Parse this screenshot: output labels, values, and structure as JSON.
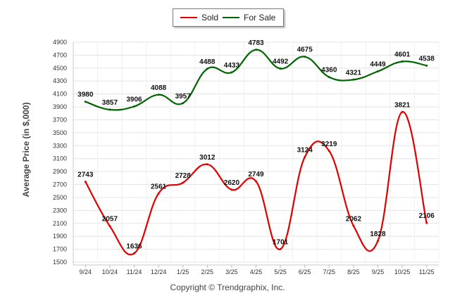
{
  "chart_data": {
    "type": "line",
    "title": "",
    "xlabel": "",
    "ylabel": "Average Price (in $,000)",
    "ylim": [
      1500,
      4900
    ],
    "ytick_step": 200,
    "categories": [
      "9/24",
      "10/24",
      "11/24",
      "12/24",
      "1/25",
      "2/25",
      "3/25",
      "4/25",
      "5/25",
      "6/25",
      "7/25",
      "8/25",
      "9/25",
      "10/25",
      "11/25"
    ],
    "series": [
      {
        "name": "Sold",
        "color": "#e00000",
        "values": [
          2743,
          2057,
          1636,
          2561,
          2728,
          3012,
          2620,
          2749,
          1701,
          3124,
          3219,
          2062,
          1828,
          3821,
          2106
        ]
      },
      {
        "name": "For Sale",
        "color": "#006400",
        "values": [
          3980,
          3857,
          3906,
          4088,
          3957,
          4488,
          4433,
          4783,
          4492,
          4675,
          4360,
          4321,
          4449,
          4601,
          4538
        ]
      }
    ],
    "legend_position": "top-center",
    "grid": true
  },
  "legend": {
    "sold_label": "Sold",
    "forsale_label": "For Sale"
  },
  "footer": {
    "credit": "Copyright © Trendgraphix, Inc."
  }
}
